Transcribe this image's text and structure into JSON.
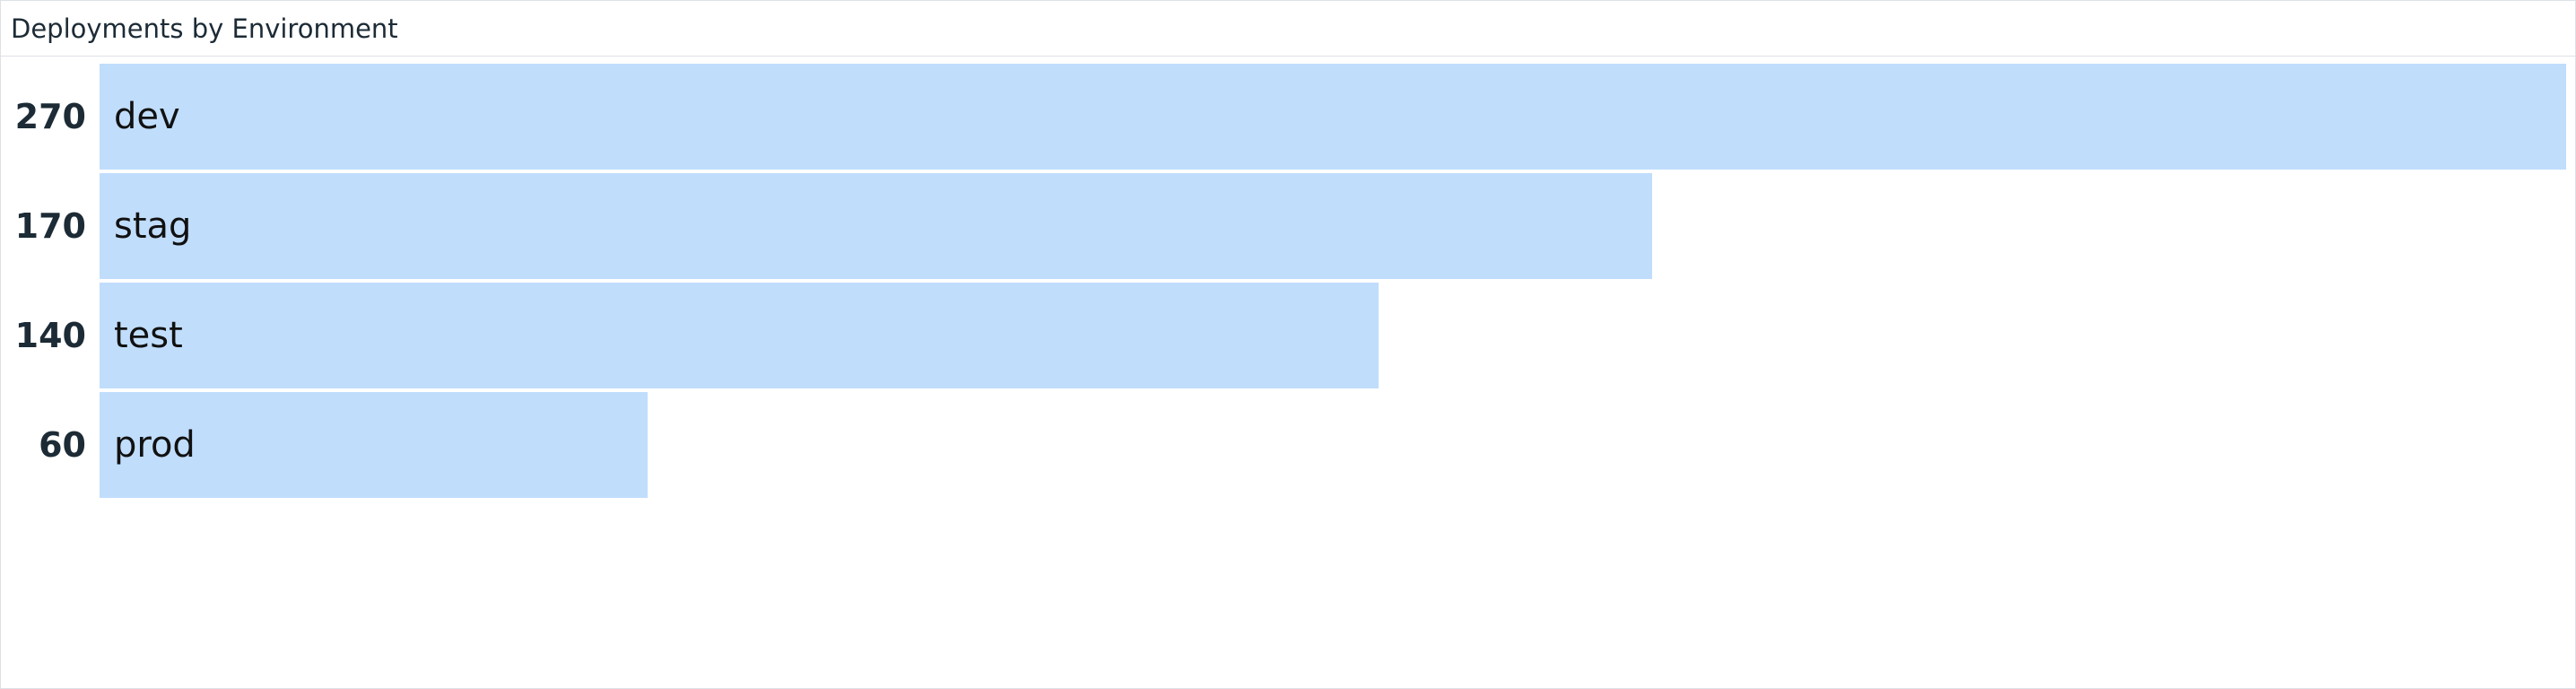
{
  "widget": {
    "title": "Deployments by Environment"
  },
  "chart_data": {
    "type": "bar",
    "orientation": "horizontal",
    "categories": [
      "dev",
      "stag",
      "test",
      "prod"
    ],
    "values": [
      270,
      170,
      140,
      60
    ],
    "title": "Deployments by Environment",
    "xlim": [
      0,
      270
    ],
    "grid": false,
    "legend": "none",
    "colors": {
      "bar": "#c0ddfc",
      "value_text": "#1c2b36",
      "label_text": "#111111"
    }
  }
}
